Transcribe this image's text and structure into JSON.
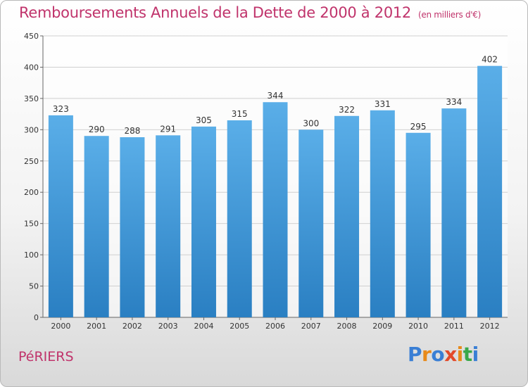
{
  "header": {
    "title": "Remboursements Annuels de la Dette de 2000 à 2012",
    "unit": "(en milliers d'€)"
  },
  "footer": {
    "commune": "PéRIERS",
    "logo": "Proxiti"
  },
  "colors": {
    "title": "#c0336b",
    "bar_light": "#5aaee8",
    "bar_dark": "#2a7fc2",
    "grid": "#d0d0d0",
    "logo": [
      "#3a7fd5",
      "#e88a1a",
      "#3a7fd5",
      "#e34a2a",
      "#e88a1a",
      "#3aa84a",
      "#3a7fd5"
    ]
  },
  "chart_data": {
    "type": "bar",
    "title": "Remboursements Annuels de la Dette de 2000 à 2012",
    "xlabel": "",
    "ylabel": "",
    "categories": [
      "2000",
      "2001",
      "2002",
      "2003",
      "2004",
      "2005",
      "2006",
      "2007",
      "2008",
      "2009",
      "2010",
      "2011",
      "2012"
    ],
    "values": [
      323,
      290,
      288,
      291,
      305,
      315,
      344,
      300,
      322,
      331,
      295,
      334,
      402
    ],
    "ylim": [
      0,
      450
    ],
    "yticks": [
      0,
      50,
      100,
      150,
      200,
      250,
      300,
      350,
      400,
      450
    ],
    "grid": true
  }
}
